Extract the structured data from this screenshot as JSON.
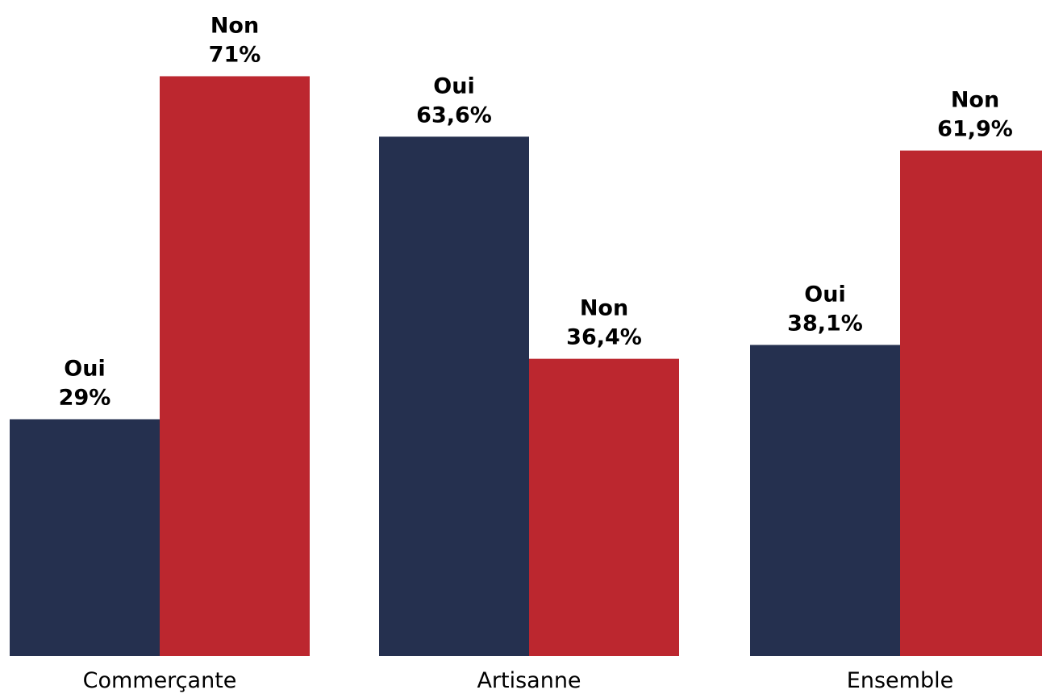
{
  "chart_data": {
    "type": "bar",
    "title": "",
    "xlabel": "",
    "ylabel": "",
    "categories": [
      "Commerçante",
      "Artisanne",
      "Ensemble"
    ],
    "series": [
      {
        "name": "Oui",
        "values": [
          29,
          63.6,
          38.1
        ],
        "labels": [
          "29%",
          "63,6%",
          "38,1%"
        ],
        "color": "#25304f"
      },
      {
        "name": "Non",
        "values": [
          71,
          36.4,
          61.9
        ],
        "labels": [
          "71%",
          "36,4%",
          "61,9%"
        ],
        "color": "#bc272f"
      }
    ],
    "ylim": [
      0,
      80
    ],
    "grid": false,
    "legend": "none"
  }
}
